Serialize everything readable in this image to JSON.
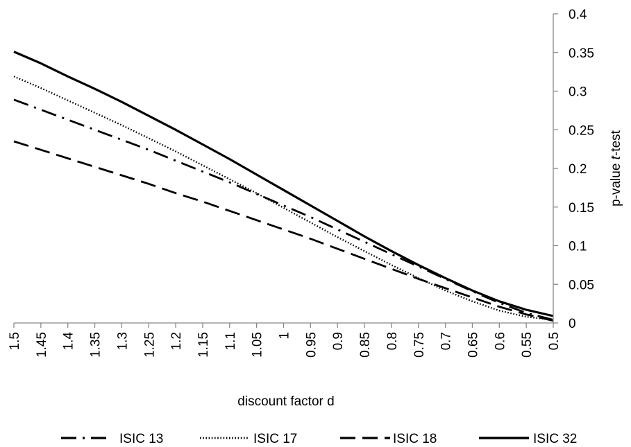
{
  "chart_data": {
    "type": "line",
    "x": [
      1.5,
      1.45,
      1.4,
      1.35,
      1.3,
      1.25,
      1.2,
      1.15,
      1.1,
      1.05,
      1,
      0.95,
      0.9,
      0.85,
      0.8,
      0.75,
      0.7,
      0.65,
      0.6,
      0.55,
      0.5
    ],
    "x_tick_labels": [
      "1.5",
      "1.45",
      "1.4",
      "1.35",
      "1.3",
      "1.25",
      "1.2",
      "1.15",
      "1.1",
      "1.05",
      "1",
      "0.95",
      "0.9",
      "0.85",
      "0.8",
      "0.75",
      "0.7",
      "0.65",
      "0.6",
      "0.55",
      "0.5"
    ],
    "y_tick_labels": [
      "0",
      "0.05",
      "0.1",
      "0.15",
      "0.2",
      "0.25",
      "0.3",
      "0.35",
      "0.4"
    ],
    "ylim": [
      0,
      0.4
    ],
    "xlabel": "discount factor d",
    "ylabel_prefix": "p-value ",
    "ylabel_italic": "t",
    "ylabel_suffix": "-test",
    "y_axis_position": "right",
    "grid": false,
    "legend_position": "bottom",
    "series": [
      {
        "name": "ISIC 13",
        "style": "dash-dot",
        "values": [
          0.289,
          0.276,
          0.263,
          0.25,
          0.237,
          0.224,
          0.21,
          0.196,
          0.182,
          0.167,
          0.152,
          0.137,
          0.121,
          0.105,
          0.089,
          0.073,
          0.057,
          0.041,
          0.026,
          0.013,
          0.004
        ]
      },
      {
        "name": "ISIC 17",
        "style": "dotted",
        "values": [
          0.319,
          0.304,
          0.288,
          0.272,
          0.256,
          0.239,
          0.222,
          0.204,
          0.186,
          0.168,
          0.149,
          0.13,
          0.111,
          0.093,
          0.075,
          0.058,
          0.042,
          0.028,
          0.016,
          0.008,
          0.004
        ]
      },
      {
        "name": "ISIC 18",
        "style": "dashed",
        "values": [
          0.235,
          0.224,
          0.213,
          0.202,
          0.191,
          0.18,
          0.168,
          0.157,
          0.145,
          0.133,
          0.121,
          0.109,
          0.096,
          0.083,
          0.07,
          0.057,
          0.045,
          0.033,
          0.021,
          0.011,
          0.003
        ]
      },
      {
        "name": "ISIC 32",
        "style": "solid",
        "values": [
          0.351,
          0.336,
          0.319,
          0.303,
          0.286,
          0.268,
          0.25,
          0.231,
          0.212,
          0.192,
          0.172,
          0.152,
          0.132,
          0.112,
          0.093,
          0.075,
          0.058,
          0.042,
          0.028,
          0.017,
          0.009
        ]
      }
    ]
  }
}
